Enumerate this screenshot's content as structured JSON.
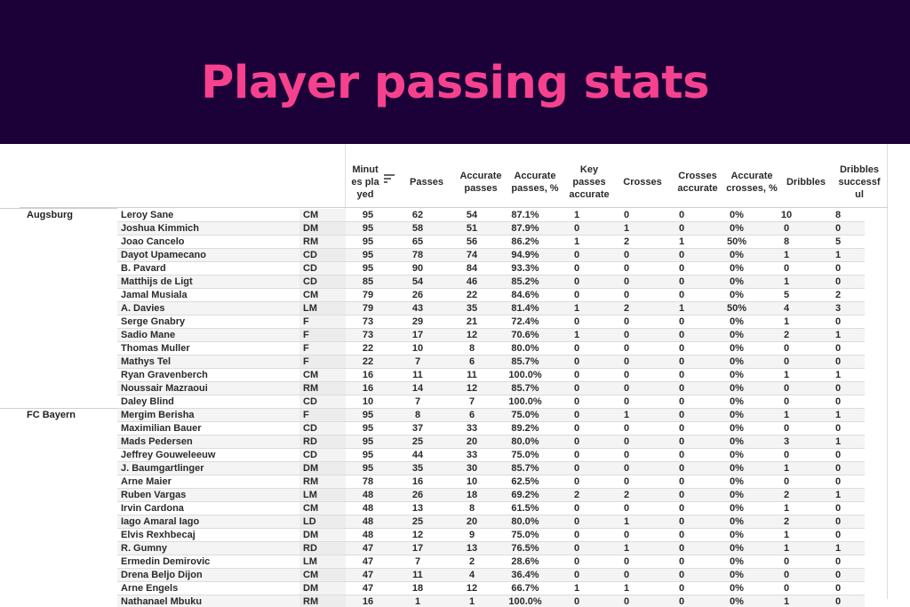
{
  "banner": {
    "title": "Player passing stats",
    "background_color": "#1b0138",
    "title_color": "#f6418f"
  },
  "table": {
    "columns": [
      {
        "key": "minutes",
        "label": "Minut es pla yed",
        "sorted": true
      },
      {
        "key": "passes",
        "label": "Passes"
      },
      {
        "key": "accurate_passes",
        "label": "Accurate passes"
      },
      {
        "key": "accurate_passes_pct",
        "label": "Accurate passes, %"
      },
      {
        "key": "key_passes_accurate",
        "label": "Key passes accurate"
      },
      {
        "key": "crosses",
        "label": "Crosses"
      },
      {
        "key": "crosses_accurate",
        "label": "Crosses accurate"
      },
      {
        "key": "accurate_crosses_pct",
        "label": "Accurate crosses, %"
      },
      {
        "key": "dribbles",
        "label": "Dribbles"
      },
      {
        "key": "dribbles_successful",
        "label": "Dribbles successf ul"
      }
    ],
    "header_labels": {
      "minutes": "Minut es pla yed",
      "passes": "Passes",
      "accurate_passes": "Accurate passes",
      "accurate_passes_pct": "Accurate passes, %",
      "key_passes_accurate": "Key passes accurate",
      "crosses": "Crosses",
      "crosses_accurate": "Crosses accurate",
      "accurate_crosses_pct": "Accurate crosses, %",
      "dribbles": "Dribbles",
      "dribbles_successful": "Dribbles successf ul"
    },
    "sort_icon": "sort-descending-icon",
    "rows": [
      {
        "team": "Augsburg",
        "name": "Leroy Sane",
        "pos": "CM",
        "v": [
          "95",
          "62",
          "54",
          "87.1%",
          "1",
          "0",
          "0",
          "0%",
          "10",
          "8"
        ]
      },
      {
        "team": "",
        "name": "Joshua Kimmich",
        "pos": "DM",
        "v": [
          "95",
          "58",
          "51",
          "87.9%",
          "0",
          "1",
          "0",
          "0%",
          "0",
          "0"
        ]
      },
      {
        "team": "",
        "name": "Joao Cancelo",
        "pos": "RM",
        "v": [
          "95",
          "65",
          "56",
          "86.2%",
          "1",
          "2",
          "1",
          "50%",
          "8",
          "5"
        ]
      },
      {
        "team": "",
        "name": "Dayot Upamecano",
        "pos": "CD",
        "v": [
          "95",
          "78",
          "74",
          "94.9%",
          "0",
          "0",
          "0",
          "0%",
          "1",
          "1"
        ]
      },
      {
        "team": "",
        "name": "B. Pavard",
        "pos": "CD",
        "v": [
          "95",
          "90",
          "84",
          "93.3%",
          "0",
          "0",
          "0",
          "0%",
          "0",
          "0"
        ]
      },
      {
        "team": "",
        "name": "Matthijs de Ligt",
        "pos": "CD",
        "v": [
          "85",
          "54",
          "46",
          "85.2%",
          "0",
          "0",
          "0",
          "0%",
          "1",
          "0"
        ]
      },
      {
        "team": "",
        "name": "Jamal Musiala",
        "pos": "CM",
        "v": [
          "79",
          "26",
          "22",
          "84.6%",
          "0",
          "0",
          "0",
          "0%",
          "5",
          "2"
        ]
      },
      {
        "team": "",
        "name": "A. Davies",
        "pos": "LM",
        "v": [
          "79",
          "43",
          "35",
          "81.4%",
          "1",
          "2",
          "1",
          "50%",
          "4",
          "3"
        ]
      },
      {
        "team": "",
        "name": "Serge Gnabry",
        "pos": "F",
        "v": [
          "73",
          "29",
          "21",
          "72.4%",
          "0",
          "0",
          "0",
          "0%",
          "1",
          "0"
        ]
      },
      {
        "team": "",
        "name": "Sadio Mane",
        "pos": "F",
        "v": [
          "73",
          "17",
          "12",
          "70.6%",
          "1",
          "0",
          "0",
          "0%",
          "2",
          "1"
        ]
      },
      {
        "team": "",
        "name": "Thomas Muller",
        "pos": "F",
        "v": [
          "22",
          "10",
          "8",
          "80.0%",
          "0",
          "0",
          "0",
          "0%",
          "0",
          "0"
        ]
      },
      {
        "team": "",
        "name": "Mathys Tel",
        "pos": "F",
        "v": [
          "22",
          "7",
          "6",
          "85.7%",
          "0",
          "0",
          "0",
          "0%",
          "0",
          "0"
        ]
      },
      {
        "team": "",
        "name": "Ryan Gravenberch",
        "pos": "CM",
        "v": [
          "16",
          "11",
          "11",
          "100.0%",
          "0",
          "0",
          "0",
          "0%",
          "1",
          "1"
        ]
      },
      {
        "team": "",
        "name": "Noussair Mazraoui",
        "pos": "RM",
        "v": [
          "16",
          "14",
          "12",
          "85.7%",
          "0",
          "0",
          "0",
          "0%",
          "0",
          "0"
        ]
      },
      {
        "team": "",
        "name": "Daley Blind",
        "pos": "CD",
        "v": [
          "10",
          "7",
          "7",
          "100.0%",
          "0",
          "0",
          "0",
          "0%",
          "0",
          "0"
        ]
      },
      {
        "team": "FC Bayern",
        "name": "Mergim Berisha",
        "pos": "F",
        "v": [
          "95",
          "8",
          "6",
          "75.0%",
          "0",
          "1",
          "0",
          "0%",
          "1",
          "1"
        ]
      },
      {
        "team": "",
        "name": "Maximilian Bauer",
        "pos": "CD",
        "v": [
          "95",
          "37",
          "33",
          "89.2%",
          "0",
          "0",
          "0",
          "0%",
          "0",
          "0"
        ]
      },
      {
        "team": "",
        "name": "Mads Pedersen",
        "pos": "RD",
        "v": [
          "95",
          "25",
          "20",
          "80.0%",
          "0",
          "0",
          "0",
          "0%",
          "3",
          "1"
        ]
      },
      {
        "team": "",
        "name": "Jeffrey Gouweleeuw",
        "pos": "CD",
        "v": [
          "95",
          "44",
          "33",
          "75.0%",
          "0",
          "0",
          "0",
          "0%",
          "0",
          "0"
        ]
      },
      {
        "team": "",
        "name": "J. Baumgartlinger",
        "pos": "DM",
        "v": [
          "95",
          "35",
          "30",
          "85.7%",
          "0",
          "0",
          "0",
          "0%",
          "1",
          "0"
        ]
      },
      {
        "team": "",
        "name": "Arne Maier",
        "pos": "RM",
        "v": [
          "78",
          "16",
          "10",
          "62.5%",
          "0",
          "0",
          "0",
          "0%",
          "0",
          "0"
        ]
      },
      {
        "team": "",
        "name": "Ruben Vargas",
        "pos": "LM",
        "v": [
          "48",
          "26",
          "18",
          "69.2%",
          "2",
          "2",
          "0",
          "0%",
          "2",
          "1"
        ]
      },
      {
        "team": "",
        "name": "Irvin Cardona",
        "pos": "CM",
        "v": [
          "48",
          "13",
          "8",
          "61.5%",
          "0",
          "0",
          "0",
          "0%",
          "1",
          "0"
        ]
      },
      {
        "team": "",
        "name": "Iago Amaral Iago",
        "pos": "LD",
        "v": [
          "48",
          "25",
          "20",
          "80.0%",
          "0",
          "1",
          "0",
          "0%",
          "2",
          "0"
        ]
      },
      {
        "team": "",
        "name": "Elvis Rexhbecaj",
        "pos": "DM",
        "v": [
          "48",
          "12",
          "9",
          "75.0%",
          "0",
          "0",
          "0",
          "0%",
          "1",
          "0"
        ]
      },
      {
        "team": "",
        "name": "R. Gumny",
        "pos": "RD",
        "v": [
          "47",
          "17",
          "13",
          "76.5%",
          "0",
          "1",
          "0",
          "0%",
          "1",
          "1"
        ]
      },
      {
        "team": "",
        "name": "Ermedin Demirovic",
        "pos": "LM",
        "v": [
          "47",
          "7",
          "2",
          "28.6%",
          "0",
          "0",
          "0",
          "0%",
          "0",
          "0"
        ]
      },
      {
        "team": "",
        "name": "Drena Beljo Dijon",
        "pos": "CM",
        "v": [
          "47",
          "11",
          "4",
          "36.4%",
          "0",
          "0",
          "0",
          "0%",
          "0",
          "0"
        ]
      },
      {
        "team": "",
        "name": "Arne Engels",
        "pos": "DM",
        "v": [
          "47",
          "18",
          "12",
          "66.7%",
          "1",
          "1",
          "0",
          "0%",
          "0",
          "0"
        ]
      },
      {
        "team": "",
        "name": "Nathanael Mbuku",
        "pos": "RM",
        "v": [
          "16",
          "1",
          "1",
          "100.0%",
          "0",
          "0",
          "0",
          "0%",
          "1",
          "0"
        ]
      }
    ]
  }
}
